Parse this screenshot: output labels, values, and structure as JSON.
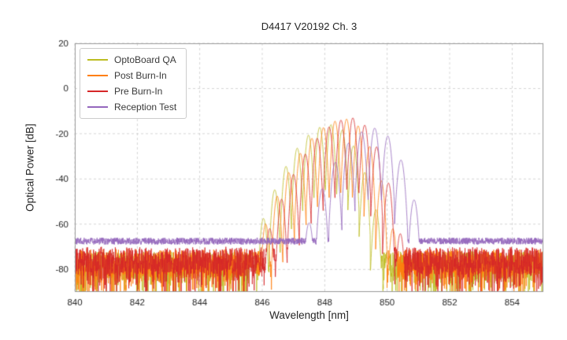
{
  "figure": {
    "title": "D4417 V20192 Ch. 3",
    "xlabel": "Wavelength [nm]",
    "ylabel": "Optical Power [dB]"
  },
  "chart_data": {
    "type": "line",
    "title": "D4417 V20192 Ch. 3",
    "xlabel": "Wavelength [nm]",
    "ylabel": "Optical Power [dB]",
    "xlim": [
      840,
      855
    ],
    "ylim": [
      -90,
      20
    ],
    "xticks": [
      840,
      842,
      844,
      846,
      848,
      850,
      852,
      854
    ],
    "yticks": [
      20,
      0,
      -20,
      -40,
      -60,
      -80
    ],
    "grid": true,
    "grid_style": "dashed",
    "grid_color": "#cccccc",
    "spine_color": "#999999",
    "tick_label_color": "#262626",
    "background": "#ffffff",
    "legend_position": "upper left",
    "series": [
      {
        "name": "OptoBoard QA",
        "color": "#bcbd22",
        "noise_floor_db": -78,
        "noise_jitter_db": 6,
        "spike_depth_db": 16,
        "mode_comb": {
          "center_nm": 848.2,
          "peak_db": -16,
          "spacing_nm": 0.36,
          "sigma_left_nm": 1.5,
          "sigma_right_nm": 1.05,
          "valley_depth_db": 29
        }
      },
      {
        "name": "Post Burn-In",
        "color": "#ff7f0e",
        "noise_floor_db": -77,
        "noise_jitter_db": 6,
        "spike_depth_db": 16,
        "mode_comb": {
          "center_nm": 848.7,
          "peak_db": -13.5,
          "spacing_nm": 0.37,
          "sigma_left_nm": 1.7,
          "sigma_right_nm": 0.95,
          "valley_depth_db": 32
        }
      },
      {
        "name": "Pre Burn-In",
        "color": "#d62728",
        "noise_floor_db": -76,
        "noise_jitter_db": 6,
        "spike_depth_db": 16,
        "mode_comb": {
          "center_nm": 848.9,
          "peak_db": -13,
          "spacing_nm": 0.38,
          "sigma_left_nm": 1.7,
          "sigma_right_nm": 0.95,
          "valley_depth_db": 32
        }
      },
      {
        "name": "Reception Test",
        "color": "#9467bd",
        "noise_floor_db": -67.5,
        "noise_jitter_db": 1.5,
        "spike_depth_db": 0,
        "mode_comb": {
          "center_nm": 849.6,
          "peak_db": -17.5,
          "spacing_nm": 0.42,
          "sigma_left_nm": 1.45,
          "sigma_right_nm": 1.0,
          "valley_depth_db": 30
        }
      }
    ]
  }
}
